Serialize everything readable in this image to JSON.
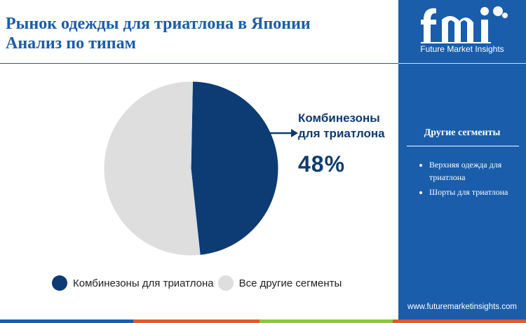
{
  "header": {
    "title": "Рынок одежды для триатлона в Японии\nАнализ  по типам"
  },
  "chart_data": {
    "type": "pie",
    "slices": [
      {
        "label": "Комбинезоны для триатлона",
        "value": 48,
        "color": "#0d3b73"
      },
      {
        "label": "Все другие сегменты",
        "value": 52,
        "color": "#dedede"
      }
    ],
    "callout": {
      "label": "Комбинезоны\nдля триатлона",
      "value": "48%"
    }
  },
  "legend": [
    {
      "label": "Комбинезоны для триатлона",
      "color": "#0d3b73"
    },
    {
      "label": "Все другие сегменты",
      "color": "#dedede"
    }
  ],
  "sidebar": {
    "logo_text": "Future Market Insights",
    "heading": "Другие сегменты",
    "items": [
      "Верхняя одежда для триатлона",
      "Шорты для триатлона"
    ],
    "website": "www.futuremarketinsights.com"
  },
  "colors": {
    "brand": "#1a5dab",
    "primary_slice": "#0d3b73",
    "secondary_slice": "#dedede"
  },
  "footer_bar_colors": [
    "#1a5dab",
    "#e05a2b",
    "#8dc63f",
    "#e05a2b",
    "#1a5dab"
  ]
}
